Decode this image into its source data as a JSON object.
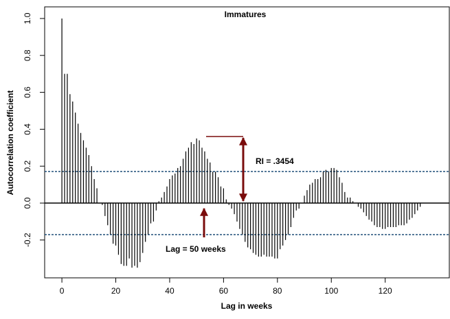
{
  "chart_data": {
    "type": "stem",
    "title": "Immatures",
    "x_label": "Lag in weeks",
    "y_label": "Autocorrelation coefficient",
    "annotations": [
      "RI = .3454",
      "Lag = 50 weeks"
    ],
    "x": [
      0,
      1,
      2,
      3,
      4,
      5,
      6,
      7,
      8,
      9,
      10,
      11,
      12,
      13,
      14,
      15,
      16,
      17,
      18,
      19,
      20,
      21,
      22,
      23,
      24,
      25,
      26,
      27,
      28,
      29,
      30,
      31,
      32,
      33,
      34,
      35,
      36,
      37,
      38,
      39,
      40,
      41,
      42,
      43,
      44,
      45,
      46,
      47,
      48,
      49,
      50,
      51,
      52,
      53,
      54,
      55,
      56,
      57,
      58,
      59,
      60,
      61,
      62,
      63,
      64,
      65,
      66,
      67,
      68,
      69,
      70,
      71,
      72,
      73,
      74,
      75,
      76,
      77,
      78,
      79,
      80,
      81,
      82,
      83,
      84,
      85,
      86,
      87,
      88,
      89,
      90,
      91,
      92,
      93,
      94,
      95,
      96,
      97,
      98,
      99,
      100,
      101,
      102,
      103,
      104,
      105,
      106,
      107,
      108,
      109,
      110,
      111,
      112,
      113,
      114,
      115,
      116,
      117,
      118,
      119,
      120,
      121,
      122,
      123,
      124,
      125,
      126,
      127,
      128,
      129,
      130,
      131,
      132,
      133
    ],
    "values": [
      1.0,
      0.7,
      0.7,
      0.59,
      0.55,
      0.49,
      0.43,
      0.38,
      0.34,
      0.3,
      0.26,
      0.2,
      0.13,
      0.08,
      0.0,
      -0.01,
      -0.07,
      -0.12,
      -0.17,
      -0.22,
      -0.23,
      -0.28,
      -0.33,
      -0.34,
      -0.34,
      -0.3,
      -0.35,
      -0.34,
      -0.35,
      -0.32,
      -0.27,
      -0.21,
      -0.17,
      -0.11,
      -0.1,
      -0.04,
      0.01,
      0.03,
      0.06,
      0.09,
      0.13,
      0.15,
      0.16,
      0.19,
      0.2,
      0.24,
      0.28,
      0.3,
      0.33,
      0.32,
      0.35,
      0.34,
      0.3,
      0.28,
      0.24,
      0.22,
      0.17,
      0.17,
      0.14,
      0.09,
      0.08,
      0.02,
      -0.01,
      -0.03,
      -0.06,
      -0.1,
      -0.14,
      -0.17,
      -0.21,
      -0.24,
      -0.25,
      -0.27,
      -0.28,
      -0.29,
      -0.29,
      -0.28,
      -0.29,
      -0.29,
      -0.29,
      -0.3,
      -0.3,
      -0.25,
      -0.23,
      -0.2,
      -0.17,
      -0.13,
      -0.08,
      -0.04,
      -0.03,
      0.0,
      0.04,
      0.07,
      0.1,
      0.11,
      0.13,
      0.13,
      0.14,
      0.17,
      0.18,
      0.17,
      0.19,
      0.19,
      0.18,
      0.14,
      0.11,
      0.06,
      0.03,
      0.03,
      0.01,
      0.0,
      -0.02,
      -0.03,
      -0.05,
      -0.07,
      -0.09,
      -0.1,
      -0.12,
      -0.13,
      -0.13,
      -0.14,
      -0.14,
      -0.13,
      -0.13,
      -0.13,
      -0.13,
      -0.12,
      -0.12,
      -0.12,
      -0.11,
      -0.09,
      -0.08,
      -0.06,
      -0.04,
      -0.02
    ],
    "color": "#000000",
    "conf_lines": [
      0.171,
      -0.171
    ],
    "conf_color": "#1f4e79",
    "xlim": [
      -6.4,
      143.8
    ],
    "ylim": [
      -0.405,
      1.063
    ],
    "xticks": [
      0,
      20,
      40,
      60,
      80,
      100,
      120
    ],
    "yticks": [
      -0.2,
      {
        "value": 0,
        "label": "0.0"
      },
      0.2,
      0.4,
      0.6,
      0.8,
      {
        "value": 1,
        "label": "1.0"
      }
    ]
  }
}
